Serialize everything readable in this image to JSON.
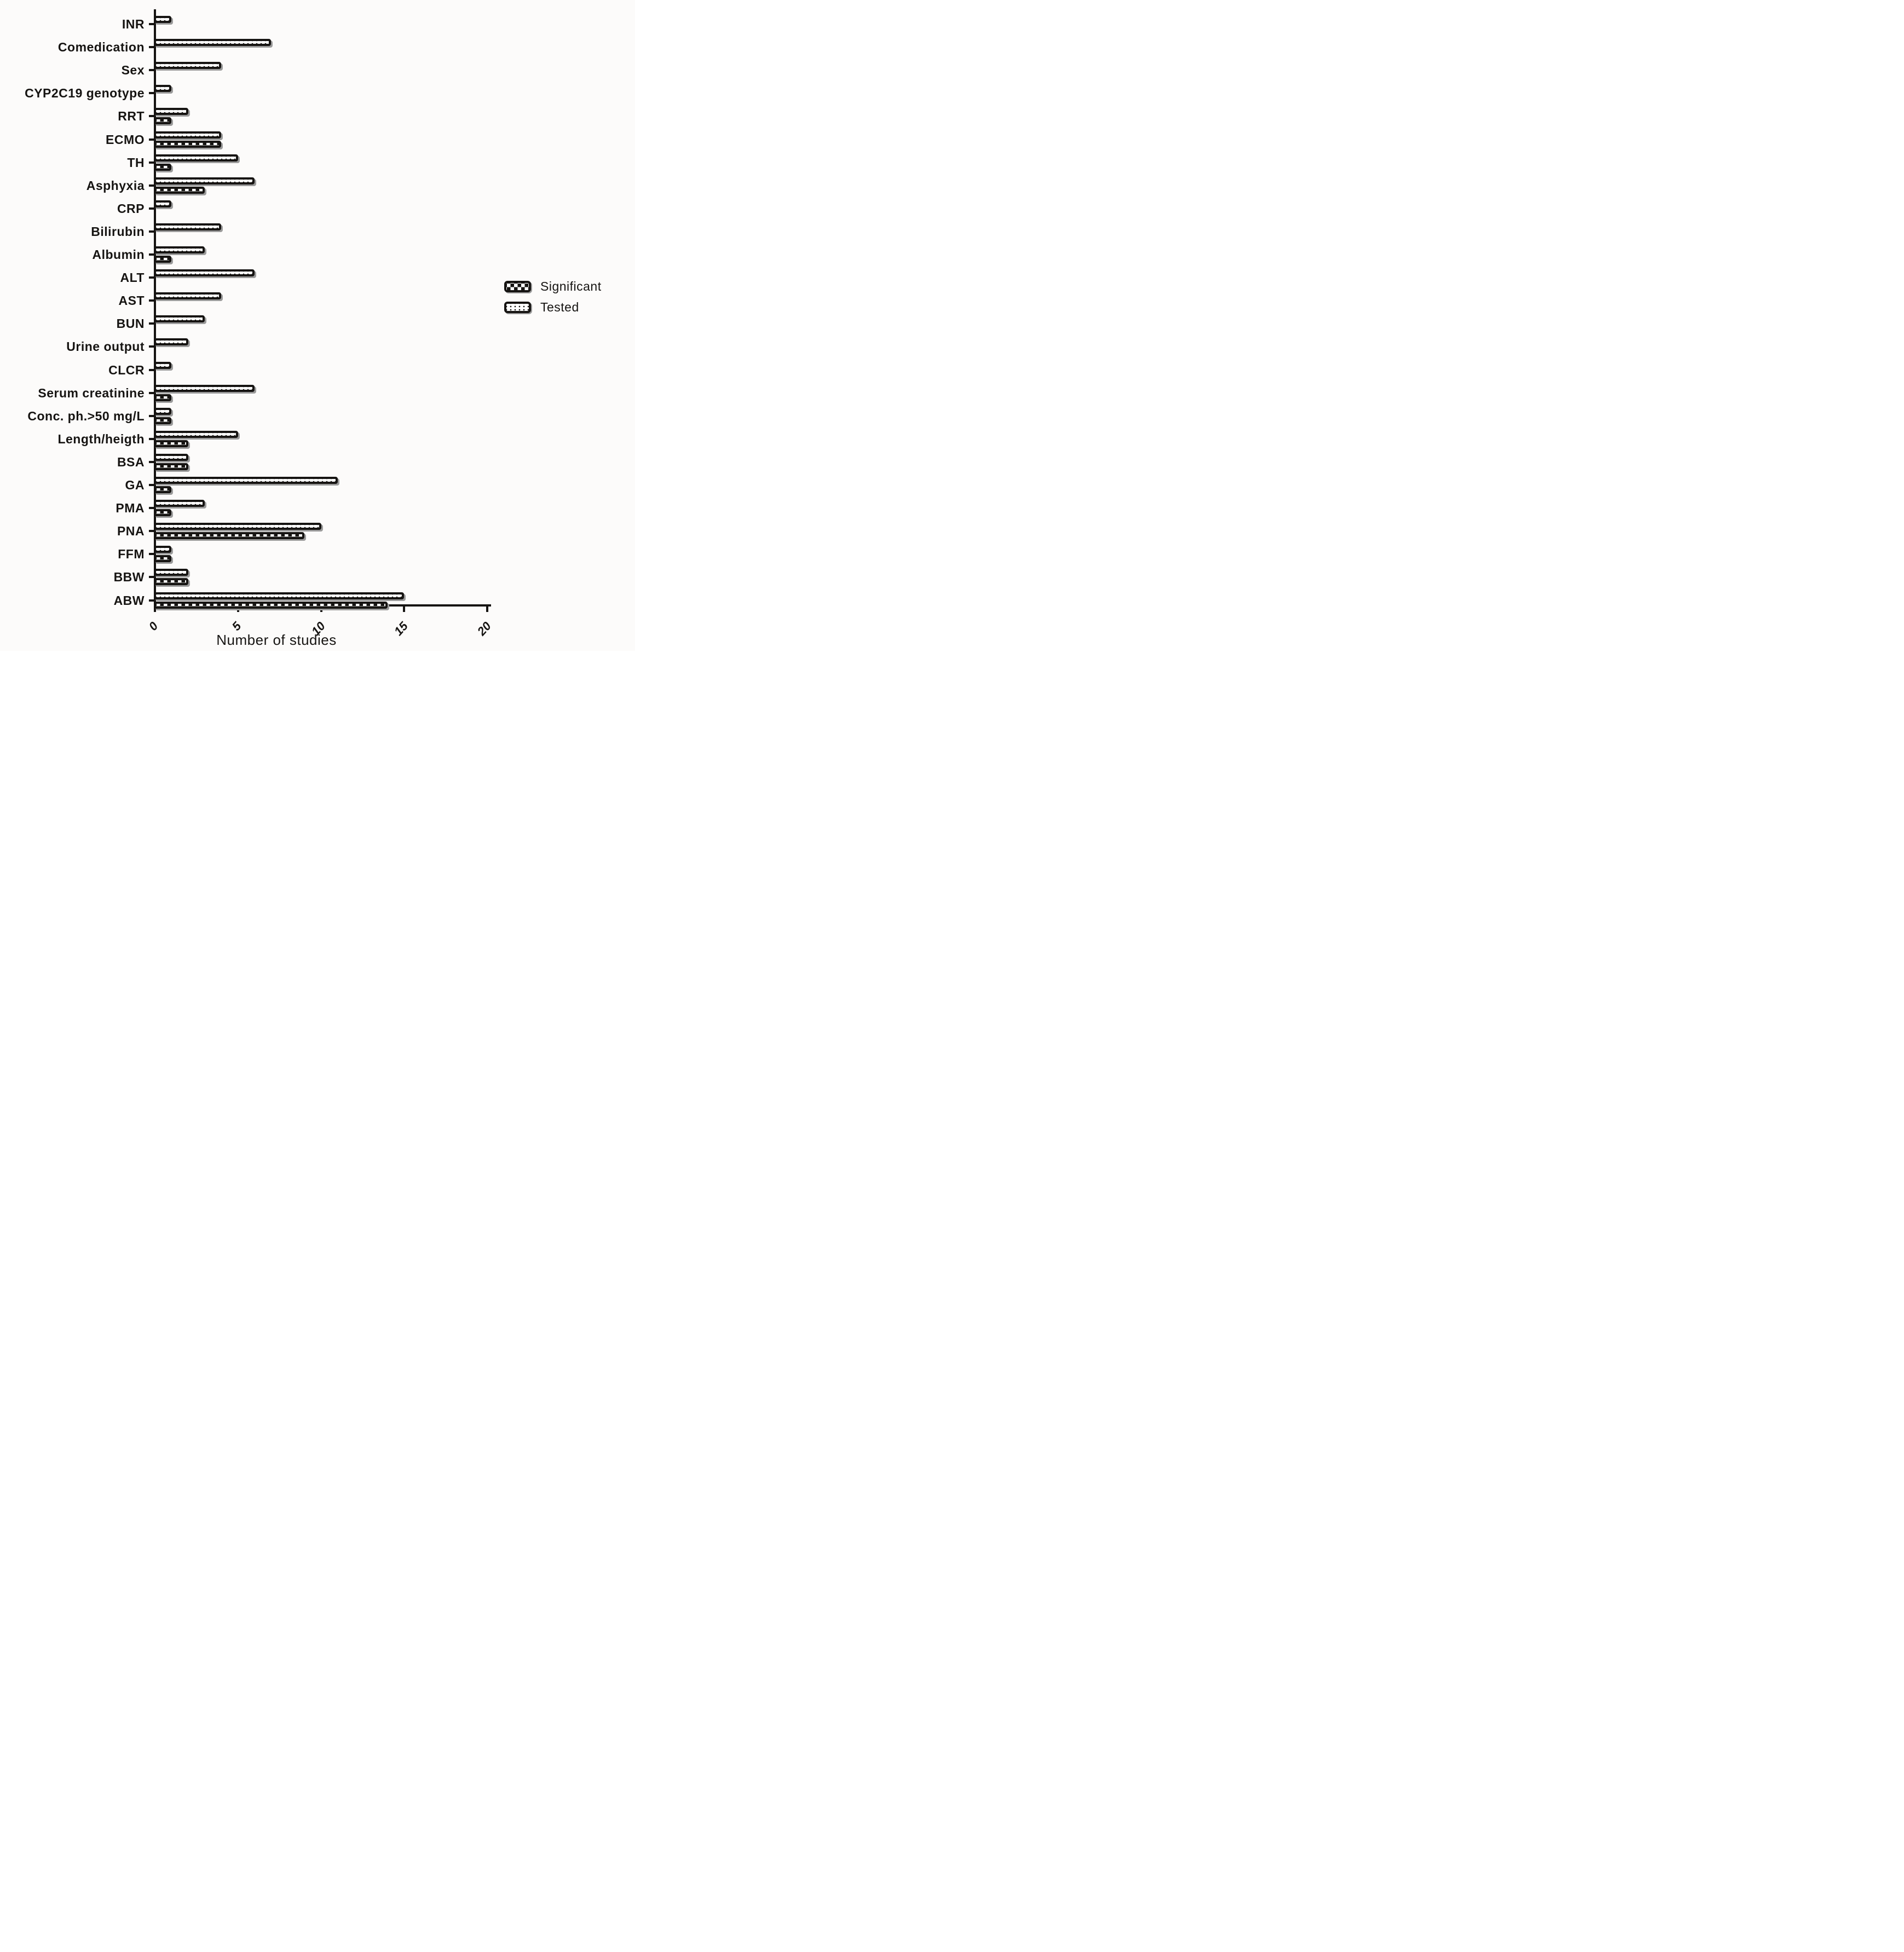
{
  "chart_data": {
    "type": "bar",
    "orientation": "horizontal",
    "title": "",
    "xlabel": "Number of studies",
    "xlim": [
      0,
      20
    ],
    "xticks": [
      "0",
      "5",
      "10",
      "15",
      "20"
    ],
    "grid": false,
    "legend_position": "right-middle",
    "categories_top_to_bottom": [
      "INR",
      "Comedication",
      "Sex",
      "CYP2C19 genotype",
      "RRT",
      "ECMO",
      "TH",
      "Asphyxia",
      "CRP",
      "Bilirubin",
      "Albumin",
      "ALT",
      "AST",
      "BUN",
      "Urine output",
      "CLCR",
      "Serum creatinine",
      "Conc. ph.>50 mg/L",
      "Length/heigth",
      "BSA",
      "GA",
      "PMA",
      "PNA",
      "FFM",
      "BBW",
      "ABW"
    ],
    "series": [
      {
        "name": "Significant",
        "pattern": "checkerboard",
        "values": [
          0,
          0,
          0,
          0,
          1,
          4,
          1,
          3,
          0,
          0,
          1,
          0,
          0,
          0,
          0,
          0,
          1,
          1,
          2,
          2,
          1,
          1,
          9,
          1,
          2,
          14
        ]
      },
      {
        "name": "Tested",
        "pattern": "dotted",
        "values": [
          1,
          7,
          4,
          1,
          2,
          4,
          5,
          6,
          1,
          4,
          3,
          6,
          4,
          3,
          2,
          1,
          6,
          1,
          5,
          2,
          11,
          3,
          10,
          1,
          2,
          15
        ]
      }
    ],
    "colors": {
      "bar_outline": "#161412",
      "bar_fill": "#ffffff",
      "shadow": "#9b9b9b",
      "background": "#fcfbfa",
      "text": "#161412"
    }
  }
}
